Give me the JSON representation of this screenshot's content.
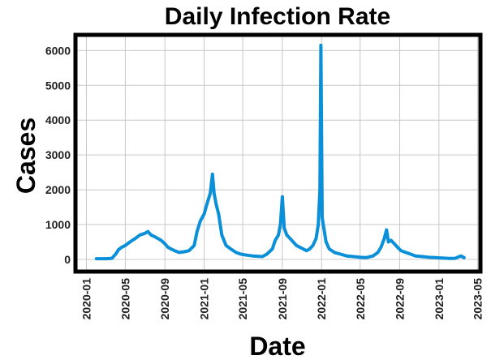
{
  "chart_data": {
    "type": "line",
    "title": "Daily Infection Rate",
    "xlabel": "Date",
    "ylabel": "Cases",
    "grid": true,
    "legend": "none",
    "ylim": [
      -350,
      6450
    ],
    "xlim": [
      "2019-11-28",
      "2023-05-10"
    ],
    "y_ticks": [
      0,
      1000,
      2000,
      3000,
      4000,
      5000,
      6000
    ],
    "x_ticks": [
      "2020-01",
      "2020-05",
      "2020-09",
      "2021-01",
      "2021-05",
      "2021-09",
      "2022-01",
      "2022-05",
      "2022-09",
      "2023-01",
      "2023-05"
    ],
    "colors": {
      "line": "#0a8fd9",
      "grid": "#c8c8c8",
      "frame": "#000000"
    },
    "series": [
      {
        "x": [
          "2020-02-01",
          "2020-03-01",
          "2020-03-20",
          "2020-04-01",
          "2020-04-10",
          "2020-04-20",
          "2020-05-01",
          "2020-05-15",
          "2020-06-01",
          "2020-06-15",
          "2020-07-01",
          "2020-07-10",
          "2020-07-20",
          "2020-08-01",
          "2020-08-10",
          "2020-08-20",
          "2020-09-01",
          "2020-09-10",
          "2020-09-20",
          "2020-10-01",
          "2020-10-15",
          "2020-11-01",
          "2020-11-15",
          "2020-12-01",
          "2020-12-10",
          "2020-12-20",
          "2021-01-01",
          "2021-01-10",
          "2021-01-20",
          "2021-01-27",
          "2021-02-01",
          "2021-02-07",
          "2021-02-15",
          "2021-02-25",
          "2021-03-10",
          "2021-03-25",
          "2021-04-10",
          "2021-04-25",
          "2021-05-15",
          "2021-06-01",
          "2021-06-15",
          "2021-07-01",
          "2021-07-15",
          "2021-08-01",
          "2021-08-10",
          "2021-08-20",
          "2021-08-26",
          "2021-09-01",
          "2021-09-07",
          "2021-09-15",
          "2021-09-25",
          "2021-10-05",
          "2021-10-15",
          "2021-10-25",
          "2021-11-05",
          "2021-11-15",
          "2021-11-25",
          "2021-12-05",
          "2021-12-15",
          "2021-12-22",
          "2021-12-27",
          "2021-12-30",
          "2022-01-03",
          "2022-01-08",
          "2022-01-15",
          "2022-01-25",
          "2022-02-10",
          "2022-03-01",
          "2022-03-20",
          "2022-04-10",
          "2022-05-01",
          "2022-05-20",
          "2022-06-10",
          "2022-06-25",
          "2022-07-05",
          "2022-07-15",
          "2022-07-22",
          "2022-07-28",
          "2022-08-05",
          "2022-08-15",
          "2022-08-25",
          "2022-09-05",
          "2022-09-20",
          "2022-10-05",
          "2022-10-20",
          "2022-11-10",
          "2022-12-01",
          "2022-12-20",
          "2023-01-10",
          "2023-02-01",
          "2023-02-20",
          "2023-03-10",
          "2023-03-20"
        ],
        "y": [
          20,
          20,
          30,
          150,
          280,
          350,
          400,
          500,
          600,
          700,
          750,
          800,
          700,
          650,
          600,
          550,
          450,
          350,
          300,
          250,
          200,
          220,
          250,
          400,
          800,
          1100,
          1300,
          1600,
          1900,
          2450,
          1900,
          1600,
          1300,
          700,
          400,
          300,
          200,
          150,
          120,
          100,
          90,
          80,
          150,
          300,
          550,
          700,
          1000,
          1800,
          900,
          700,
          600,
          500,
          400,
          350,
          300,
          250,
          300,
          400,
          600,
          1000,
          2000,
          6150,
          1200,
          900,
          500,
          300,
          200,
          150,
          100,
          80,
          60,
          50,
          100,
          200,
          350,
          600,
          850,
          500,
          550,
          450,
          350,
          250,
          200,
          150,
          100,
          80,
          60,
          50,
          40,
          30,
          30,
          100,
          50
        ]
      }
    ]
  }
}
